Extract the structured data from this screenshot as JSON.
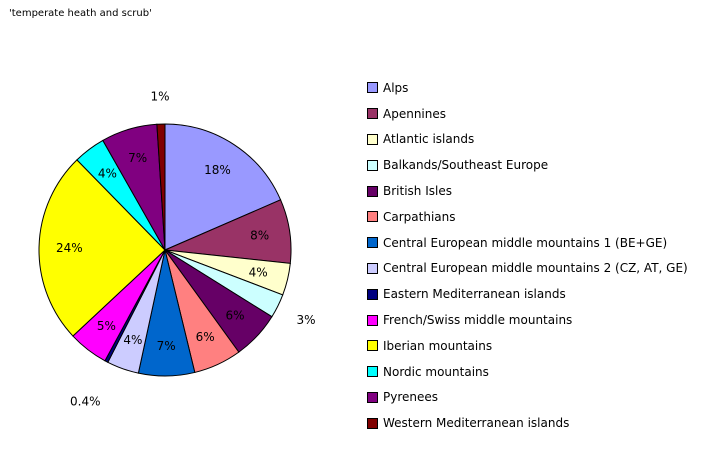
{
  "chart_data": {
    "type": "pie",
    "title": "'temperate heath and scrub'",
    "slices": [
      {
        "label": "Alps",
        "value": 18,
        "display": "18%",
        "color": "#9999ff"
      },
      {
        "label": "Apennines",
        "value": 8,
        "display": "8%",
        "color": "#993366"
      },
      {
        "label": "Atlantic islands",
        "value": 4,
        "display": "4%",
        "color": "#ffffcc"
      },
      {
        "label": "Balkands/Southeast Europe",
        "value": 3,
        "display": "3%",
        "color": "#ccffff"
      },
      {
        "label": "British Isles",
        "value": 6,
        "display": "6%",
        "color": "#660066"
      },
      {
        "label": "Carpathians",
        "value": 6,
        "display": "6%",
        "color": "#ff8080"
      },
      {
        "label": "Central European middle mountains 1 (BE+GE)",
        "value": 7,
        "display": "7%",
        "color": "#0066cc"
      },
      {
        "label": "Central European middle mountains 2 (CZ, AT, GE)",
        "value": 4,
        "display": "4%",
        "color": "#ccccff"
      },
      {
        "label": "Eastern Mediterranean islands",
        "value": 0.4,
        "display": "0.4%",
        "color": "#000080"
      },
      {
        "label": "French/Swiss middle mountains",
        "value": 5,
        "display": "5%",
        "color": "#ff00ff"
      },
      {
        "label": "Iberian mountains",
        "value": 24,
        "display": "24%",
        "color": "#ffff00"
      },
      {
        "label": "Nordic mountains",
        "value": 4,
        "display": "4%",
        "color": "#00ffff"
      },
      {
        "label": "Pyrenees",
        "value": 7,
        "display": "7%",
        "color": "#800080"
      },
      {
        "label": "Western Mediterranean islands",
        "value": 1,
        "display": "1%",
        "color": "#800000"
      }
    ],
    "legend_position": "right"
  }
}
